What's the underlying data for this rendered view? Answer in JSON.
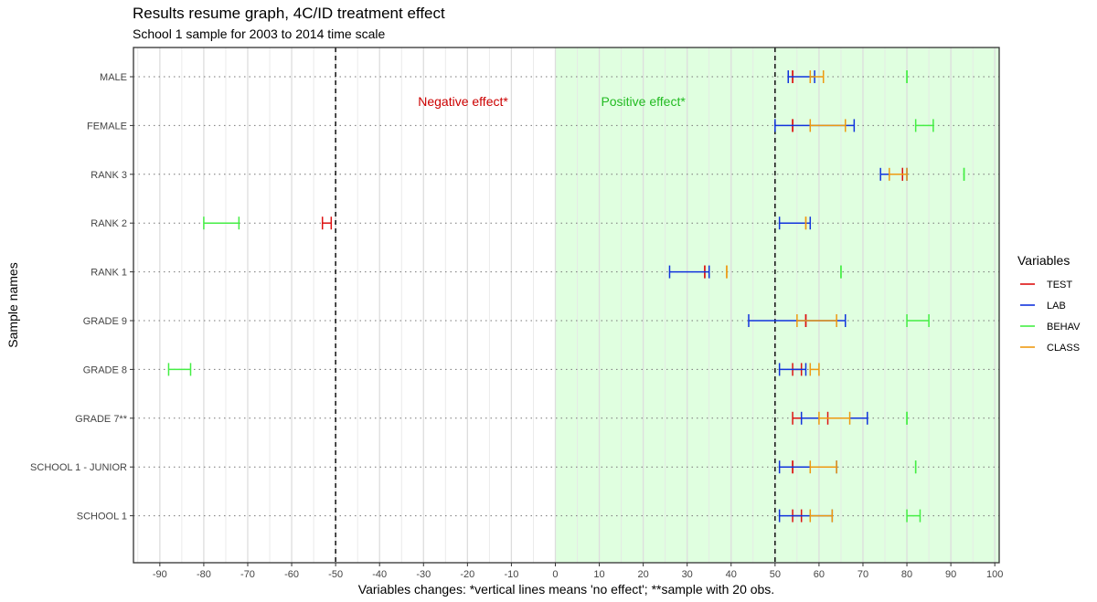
{
  "chart_data": {
    "type": "errorbar",
    "title": "Results resume graph, 4C/ID treatment effect",
    "subtitle": "School 1 sample for 2003 to 2014 time scale",
    "xlabel": "Variables changes: *vertical lines means 'no effect'; **sample with 20 obs.",
    "ylabel": "Sample names",
    "xlim": [
      -96,
      101
    ],
    "x_ticks": [
      -90,
      -80,
      -70,
      -60,
      -50,
      -40,
      -30,
      -20,
      -10,
      0,
      10,
      20,
      30,
      40,
      50,
      60,
      70,
      80,
      90,
      100
    ],
    "grid": true,
    "reference_lines": [
      -50,
      50
    ],
    "shaded_region": {
      "from": 0,
      "to": 101,
      "color": "#e0ffe0"
    },
    "annotations": [
      {
        "text": "Negative effect*",
        "x": -21,
        "row": "MALE",
        "color": "#cc0000"
      },
      {
        "text": "Positive effect*",
        "x": 20,
        "row": "MALE",
        "color": "#22bb22"
      }
    ],
    "categories": [
      "MALE",
      "FEMALE",
      "RANK 3",
      "RANK 2",
      "RANK 1",
      "GRADE 9",
      "GRADE 8",
      "GRADE 7**",
      "SCHOOL 1 - JUNIOR",
      "SCHOOL 1"
    ],
    "legend": {
      "title": "Variables",
      "position": "right"
    },
    "series": [
      {
        "name": "TEST",
        "color": "#dd1111",
        "intervals": [
          {
            "category": "MALE",
            "low": 54,
            "high": 54
          },
          {
            "category": "FEMALE",
            "low": 54,
            "high": 54
          },
          {
            "category": "RANK 3",
            "low": 79,
            "high": 79
          },
          {
            "category": "RANK 2",
            "low": -53,
            "high": -51
          },
          {
            "category": "RANK 1",
            "low": 34,
            "high": 34
          },
          {
            "category": "GRADE 9",
            "low": 57,
            "high": 57
          },
          {
            "category": "GRADE 8",
            "low": 54,
            "high": 56
          },
          {
            "category": "GRADE 7**",
            "low": 54,
            "high": 62
          },
          {
            "category": "SCHOOL 1 - JUNIOR",
            "low": 54,
            "high": 54
          },
          {
            "category": "SCHOOL 1",
            "low": 54,
            "high": 56
          }
        ]
      },
      {
        "name": "LAB",
        "color": "#1133dd",
        "intervals": [
          {
            "category": "MALE",
            "low": 53,
            "high": 59
          },
          {
            "category": "FEMALE",
            "low": 50,
            "high": 68
          },
          {
            "category": "RANK 3",
            "low": 74,
            "high": 80
          },
          {
            "category": "RANK 2",
            "low": 51,
            "high": 58
          },
          {
            "category": "RANK 1",
            "low": 26,
            "high": 35
          },
          {
            "category": "GRADE 9",
            "low": 44,
            "high": 66
          },
          {
            "category": "GRADE 8",
            "low": 51,
            "high": 57
          },
          {
            "category": "GRADE 7**",
            "low": 56,
            "high": 71
          },
          {
            "category": "SCHOOL 1 - JUNIOR",
            "low": 51,
            "high": 64
          },
          {
            "category": "SCHOOL 1",
            "low": 51,
            "high": 63
          }
        ]
      },
      {
        "name": "BEHAV",
        "color": "#44ee44",
        "intervals": [
          {
            "category": "MALE",
            "low": 80,
            "high": 80
          },
          {
            "category": "FEMALE",
            "low": 82,
            "high": 86
          },
          {
            "category": "RANK 3",
            "low": 93,
            "high": 93
          },
          {
            "category": "RANK 2",
            "low": -80,
            "high": -72
          },
          {
            "category": "RANK 1",
            "low": 65,
            "high": 65
          },
          {
            "category": "GRADE 9",
            "low": 80,
            "high": 85
          },
          {
            "category": "GRADE 8",
            "low": -88,
            "high": -83
          },
          {
            "category": "GRADE 7**",
            "low": 80,
            "high": 80
          },
          {
            "category": "SCHOOL 1 - JUNIOR",
            "low": 82,
            "high": 82
          },
          {
            "category": "SCHOOL 1",
            "low": 80,
            "high": 83
          }
        ]
      },
      {
        "name": "CLASS",
        "color": "#ee9911",
        "intervals": [
          {
            "category": "MALE",
            "low": 58,
            "high": 61
          },
          {
            "category": "FEMALE",
            "low": 58,
            "high": 66
          },
          {
            "category": "RANK 3",
            "low": 76,
            "high": 80
          },
          {
            "category": "RANK 2",
            "low": 57,
            "high": 57
          },
          {
            "category": "RANK 1",
            "low": 39,
            "high": 39
          },
          {
            "category": "GRADE 9",
            "low": 55,
            "high": 64
          },
          {
            "category": "GRADE 8",
            "low": 58,
            "high": 60
          },
          {
            "category": "GRADE 7**",
            "low": 60,
            "high": 67
          },
          {
            "category": "SCHOOL 1 - JUNIOR",
            "low": 58,
            "high": 64
          },
          {
            "category": "SCHOOL 1",
            "low": 58,
            "high": 63
          }
        ]
      }
    ]
  }
}
